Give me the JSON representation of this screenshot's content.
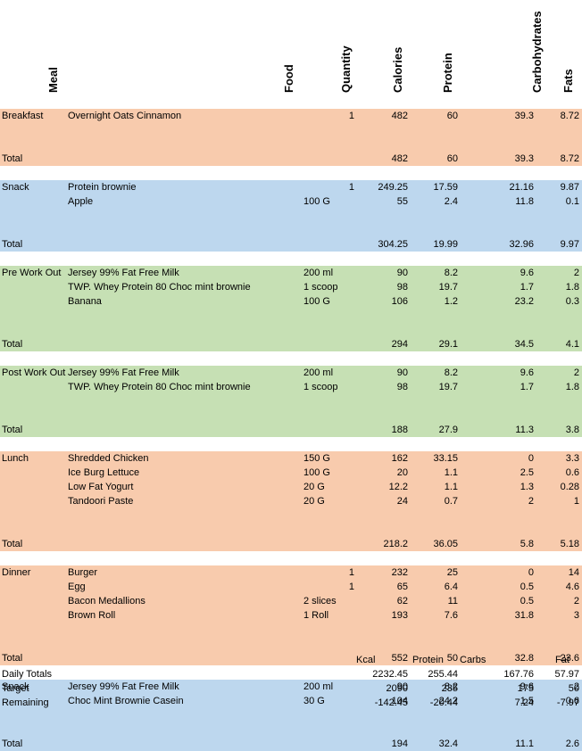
{
  "headers": {
    "meal": "Meal",
    "food": "Food",
    "quantity": "Quantity",
    "calories": "Calories",
    "protein": "Protein",
    "carbohydrates": "Carbohydrates",
    "fats": "Fats"
  },
  "colors": {
    "orange": "#f8cbad",
    "blue": "#bdd7ee",
    "green": "#c6e0b4"
  },
  "sections": [
    {
      "color": "orange",
      "items": [
        {
          "meal": "Breakfast",
          "food": "Overnight Oats Cinnamon",
          "qty": "",
          "qnum": "1",
          "cal": "482",
          "pro": "60",
          "carb": "39.3",
          "fat": "8.72"
        }
      ],
      "total": {
        "label": "Total",
        "cal": "482",
        "pro": "60",
        "carb": "39.3",
        "fat": "8.72"
      }
    },
    {
      "color": "blue",
      "items": [
        {
          "meal": "Snack",
          "food": "Protein brownie",
          "qty": "",
          "qnum": "1",
          "cal": "249.25",
          "pro": "17.59",
          "carb": "21.16",
          "fat": "9.87"
        },
        {
          "meal": "",
          "food": "Apple",
          "qty": "100 G",
          "qnum": "",
          "cal": "55",
          "pro": "2.4",
          "carb": "11.8",
          "fat": "0.1"
        }
      ],
      "total": {
        "label": "Total",
        "cal": "304.25",
        "pro": "19.99",
        "carb": "32.96",
        "fat": "9.97"
      }
    },
    {
      "color": "green",
      "items": [
        {
          "meal": "Pre Work Out",
          "food": "Jersey 99% Fat Free Milk",
          "qty": "200 ml",
          "qnum": "",
          "cal": "90",
          "pro": "8.2",
          "carb": "9.6",
          "fat": "2"
        },
        {
          "meal": "",
          "food": "TWP. Whey Protein 80 Choc mint brownie",
          "qty": "1 scoop",
          "qnum": "",
          "cal": "98",
          "pro": "19.7",
          "carb": "1.7",
          "fat": "1.8"
        },
        {
          "meal": "",
          "food": "Banana",
          "qty": "100 G",
          "qnum": "",
          "cal": "106",
          "pro": "1.2",
          "carb": "23.2",
          "fat": "0.3"
        }
      ],
      "total": {
        "label": "Total",
        "cal": "294",
        "pro": "29.1",
        "carb": "34.5",
        "fat": "4.1"
      }
    },
    {
      "color": "green",
      "items": [
        {
          "meal": "Post Work Out",
          "food": "Jersey 99% Fat Free Milk",
          "qty": "200 ml",
          "qnum": "",
          "cal": "90",
          "pro": "8.2",
          "carb": "9.6",
          "fat": "2"
        },
        {
          "meal": "",
          "food": "TWP. Whey Protein 80 Choc mint brownie",
          "qty": "1 scoop",
          "qnum": "",
          "cal": "98",
          "pro": "19.7",
          "carb": "1.7",
          "fat": "1.8"
        }
      ],
      "total": {
        "label": "Total",
        "cal": "188",
        "pro": "27.9",
        "carb": "11.3",
        "fat": "3.8"
      }
    },
    {
      "color": "orange",
      "items": [
        {
          "meal": "Lunch",
          "food": "Shredded Chicken",
          "qty": "150 G",
          "qnum": "",
          "cal": "162",
          "pro": "33.15",
          "carb": "0",
          "fat": "3.3"
        },
        {
          "meal": "",
          "food": "Ice Burg Lettuce",
          "qty": "100 G",
          "qnum": "",
          "cal": "20",
          "pro": "1.1",
          "carb": "2.5",
          "fat": "0.6"
        },
        {
          "meal": "",
          "food": "Low Fat Yogurt",
          "qty": "20 G",
          "qnum": "",
          "cal": "12.2",
          "pro": "1.1",
          "carb": "1.3",
          "fat": "0.28"
        },
        {
          "meal": "",
          "food": "Tandoori Paste",
          "qty": "20 G",
          "qnum": "",
          "cal": "24",
          "pro": "0.7",
          "carb": "2",
          "fat": "1"
        }
      ],
      "total": {
        "label": "Total",
        "cal": "218.2",
        "pro": "36.05",
        "carb": "5.8",
        "fat": "5.18"
      }
    },
    {
      "color": "orange",
      "items": [
        {
          "meal": "Dinner",
          "food": "Burger",
          "qty": "",
          "qnum": "1",
          "cal": "232",
          "pro": "25",
          "carb": "0",
          "fat": "14"
        },
        {
          "meal": "",
          "food": "Egg",
          "qty": "",
          "qnum": "1",
          "cal": "65",
          "pro": "6.4",
          "carb": "0.5",
          "fat": "4.6"
        },
        {
          "meal": "",
          "food": "Bacon Medallions",
          "qty": "2 slices",
          "qnum": "",
          "cal": "62",
          "pro": "11",
          "carb": "0.5",
          "fat": "2"
        },
        {
          "meal": "",
          "food": "Brown Roll",
          "qty": "1 Roll",
          "qnum": "",
          "cal": "193",
          "pro": "7.6",
          "carb": "31.8",
          "fat": "3"
        }
      ],
      "total": {
        "label": "Total",
        "cal": "552",
        "pro": "50",
        "carb": "32.8",
        "fat": "23.6"
      }
    },
    {
      "color": "blue",
      "items": [
        {
          "meal": "Snack",
          "food": "Jersey 99% Fat Free Milk",
          "qty": "200 ml",
          "qnum": "",
          "cal": "90",
          "pro": "8.2",
          "carb": "9.6",
          "fat": "2"
        },
        {
          "meal": "",
          "food": "Choc Mint Brownie Casein",
          "qty": "30 G",
          "qnum": "",
          "cal": "104",
          "pro": "24.2",
          "carb": "1.5",
          "fat": "0.6"
        }
      ],
      "total": {
        "label": "Total",
        "cal": "194",
        "pro": "32.4",
        "carb": "11.1",
        "fat": "2.6"
      }
    }
  ],
  "summary": {
    "labels": {
      "kcal": "Kcal",
      "protein": "Protein",
      "carbs": "Carbs",
      "fat": "Fat"
    },
    "rows": [
      {
        "label": "Daily Totals",
        "cal": "2232.45",
        "pro": "255.44",
        "carb": "167.76",
        "fat": "57.97"
      },
      {
        "label": "Target",
        "cal": "2090",
        "pro": "235",
        "carb": "175",
        "fat": "50"
      },
      {
        "label": "Remaining",
        "cal": "-142.45",
        "pro": "-20.44",
        "carb": "7.24",
        "fat": "-7.97"
      }
    ]
  }
}
